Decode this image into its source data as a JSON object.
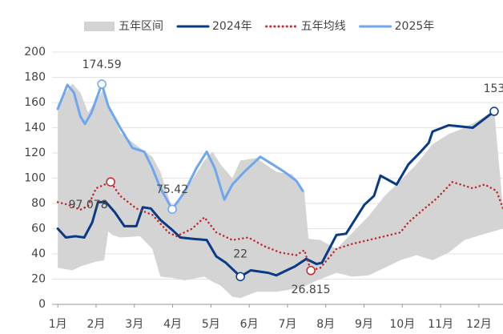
{
  "chart_data": {
    "type": "line",
    "xlim": [
      0.85,
      12.63
    ],
    "ylim": [
      0,
      200
    ],
    "yticks": [
      0,
      20,
      40,
      60,
      80,
      100,
      120,
      140,
      160,
      180,
      200
    ],
    "xticks": [
      {
        "value": 1,
        "label": "1月"
      },
      {
        "value": 2,
        "label": "2月"
      },
      {
        "value": 3,
        "label": "3月"
      },
      {
        "value": 4,
        "label": "4月"
      },
      {
        "value": 5,
        "label": "5月"
      },
      {
        "value": 6,
        "label": "6月"
      },
      {
        "value": 7,
        "label": "7月"
      },
      {
        "value": 8,
        "label": "8月"
      },
      {
        "value": 9,
        "label": "9月"
      },
      {
        "value": 10,
        "label": "10月"
      },
      {
        "value": 11,
        "label": "11月"
      },
      {
        "value": 12,
        "label": "12月"
      }
    ],
    "grid": true,
    "legend": "top",
    "band": {
      "name": "五年区间",
      "color": "#d4d4d4",
      "x": [
        1.0,
        1.38,
        1.59,
        1.79,
        2.0,
        2.21,
        2.32,
        2.42,
        2.63,
        3.15,
        3.47,
        3.68,
        3.99,
        4.31,
        4.83,
        5.04,
        5.25,
        5.56,
        5.77,
        6.19,
        6.71,
        7.13,
        7.44,
        7.55,
        7.86,
        8.28,
        8.7,
        9.12,
        9.54,
        9.95,
        10.37,
        10.79,
        11.21,
        11.63,
        12.05,
        12.4,
        12.63
      ],
      "high": [
        159,
        175,
        168,
        152,
        162,
        171,
        160,
        152,
        136,
        124,
        117,
        105,
        76,
        89,
        114,
        121,
        111,
        100,
        114,
        116,
        105,
        103,
        89,
        52,
        51,
        44,
        57,
        70,
        86,
        98,
        111,
        127,
        135,
        140,
        147,
        154,
        76
      ],
      "low": [
        29,
        27,
        30,
        32,
        34,
        35,
        58,
        55,
        53,
        54,
        44,
        22,
        21,
        19,
        22,
        18,
        15,
        6,
        5,
        10,
        10,
        12,
        14,
        16,
        20,
        25,
        22,
        23,
        29,
        35,
        39,
        35,
        41,
        51,
        55,
        58,
        60
      ]
    },
    "series": [
      {
        "name": "2024年",
        "color": "#0a3a86",
        "style": "solid",
        "x": [
          1,
          1.21,
          1.46,
          1.69,
          1.9,
          2.05,
          2.26,
          2.49,
          2.74,
          3.05,
          3.22,
          3.43,
          3.68,
          3.99,
          4.2,
          4.51,
          4.89,
          5.14,
          5.39,
          5.77,
          6.04,
          6.5,
          6.71,
          6.98,
          7.19,
          7.49,
          7.76,
          7.9,
          8.28,
          8.53,
          9.01,
          9.26,
          9.43,
          9.85,
          10.16,
          10.48,
          10.69,
          10.79,
          11.21,
          11.52,
          11.84,
          12.4
        ],
        "values": [
          60,
          53,
          54,
          53,
          65,
          81,
          81,
          73,
          62,
          62,
          77,
          76,
          67,
          59,
          53,
          52,
          51,
          38,
          33,
          22,
          27,
          25,
          23,
          27,
          30,
          36,
          32,
          33,
          55,
          56,
          79,
          86,
          102,
          95,
          111,
          121,
          128,
          137,
          142,
          141,
          140,
          153
        ],
        "labeled": [
          19,
          41
        ]
      },
      {
        "name": "五年均线",
        "color": "#c0282d",
        "style": "dotted",
        "x": [
          1,
          1.27,
          1.59,
          1.79,
          2.0,
          2.38,
          2.63,
          3.05,
          3.47,
          3.89,
          4.1,
          4.51,
          4.83,
          5.14,
          5.56,
          5.98,
          6.4,
          6.82,
          7.23,
          7.44,
          7.61,
          7.86,
          8.28,
          8.7,
          9.12,
          9.54,
          9.95,
          10.16,
          10.58,
          10.9,
          11.31,
          11.52,
          11.84,
          12.15,
          12.46,
          12.63
        ],
        "values": [
          81,
          79,
          75,
          78,
          92,
          97.078,
          86,
          76,
          71,
          57,
          54,
          60,
          69,
          57,
          51,
          53,
          46,
          41,
          39,
          43,
          26.815,
          29,
          44,
          48,
          51,
          54,
          57,
          65,
          76,
          84,
          97,
          95,
          92,
          95,
          90,
          76
        ],
        "labeled": [
          5,
          20
        ]
      },
      {
        "name": "2025年",
        "color": "#6ea6f0",
        "style": "solid",
        "x": [
          1,
          1.25,
          1.42,
          1.59,
          1.71,
          1.88,
          2.15,
          2.32,
          2.63,
          2.95,
          3.26,
          3.47,
          3.68,
          3.99,
          4.31,
          4.62,
          4.89,
          5.1,
          5.35,
          5.56,
          5.87,
          6.08,
          6.29,
          6.61,
          6.92,
          7.23,
          7.4
        ],
        "values": [
          155,
          174,
          168,
          149,
          143,
          152,
          174.59,
          157,
          140,
          124,
          121,
          108,
          92,
          75.42,
          89,
          108,
          121,
          108,
          83,
          95,
          105,
          111,
          117,
          111,
          105,
          98,
          90
        ],
        "labeled": [
          6,
          13
        ]
      }
    ]
  }
}
